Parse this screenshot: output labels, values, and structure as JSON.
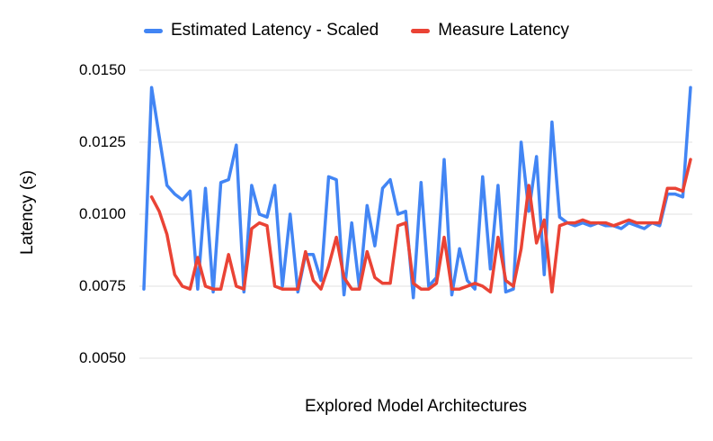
{
  "chart_data": {
    "type": "line",
    "title": "",
    "xlabel": "Explored Model Architectures",
    "ylabel": "Latency (s)",
    "ylim": [
      0.005,
      0.015
    ],
    "yticks": [
      0.015,
      0.0125,
      0.01,
      0.0075,
      0.005
    ],
    "ytick_labels": [
      "0.0150",
      "0.0125",
      "0.0100",
      "0.0075",
      "0.0050"
    ],
    "grid": true,
    "legend_position": "top",
    "x_tick_labels_shown": false,
    "point_count": 72,
    "series": [
      {
        "name": "Estimated Latency - Scaled",
        "color": "#4285f4",
        "values": [
          0.0074,
          0.0144,
          0.0127,
          0.011,
          0.0107,
          0.0105,
          0.0108,
          0.0074,
          0.0109,
          0.0073,
          0.0111,
          0.0112,
          0.0124,
          0.0073,
          0.011,
          0.01,
          0.0099,
          0.011,
          0.0075,
          0.01,
          0.0073,
          0.0086,
          0.0086,
          0.0077,
          0.0113,
          0.0112,
          0.0072,
          0.0097,
          0.0074,
          0.0103,
          0.0089,
          0.0109,
          0.0112,
          0.01,
          0.0101,
          0.0071,
          0.0111,
          0.0075,
          0.0078,
          0.0119,
          0.0072,
          0.0088,
          0.0077,
          0.0074,
          0.0113,
          0.0081,
          0.011,
          0.0073,
          0.0074,
          0.0125,
          0.0101,
          0.012,
          0.0079,
          0.0132,
          0.0099,
          0.0097,
          0.0096,
          0.0097,
          0.0096,
          0.0097,
          0.0096,
          0.0096,
          0.0095,
          0.0097,
          0.0096,
          0.0095,
          0.0097,
          0.0096,
          0.0107,
          0.0107,
          0.0106,
          0.0144
        ]
      },
      {
        "name": "Measure Latency",
        "color": "#ea4335",
        "values": [
          null,
          0.0106,
          0.0101,
          0.0093,
          0.0079,
          0.0075,
          0.0074,
          0.0085,
          0.0075,
          0.0074,
          0.0074,
          0.0086,
          0.0075,
          0.0074,
          0.0095,
          0.0097,
          0.0096,
          0.0075,
          0.0074,
          0.0074,
          0.0074,
          0.0087,
          0.0077,
          0.0074,
          0.0082,
          0.0092,
          0.0078,
          0.0074,
          0.0074,
          0.0087,
          0.0078,
          0.0076,
          0.0076,
          0.0096,
          0.0097,
          0.0076,
          0.0074,
          0.0074,
          0.0076,
          0.0092,
          0.0074,
          0.0074,
          0.0075,
          0.0076,
          0.0075,
          0.0073,
          0.0092,
          0.0077,
          0.0075,
          0.0088,
          0.011,
          0.009,
          0.0098,
          0.0073,
          0.0096,
          0.0097,
          0.0097,
          0.0098,
          0.0097,
          0.0097,
          0.0097,
          0.0096,
          0.0097,
          0.0098,
          0.0097,
          0.0097,
          0.0097,
          0.0097,
          0.0109,
          0.0109,
          0.0108,
          0.0119
        ]
      }
    ],
    "style": {
      "grid_color": "#e1e1e1",
      "text_color": "#000000",
      "background": "#ffffff",
      "line_width": 3.5
    }
  }
}
